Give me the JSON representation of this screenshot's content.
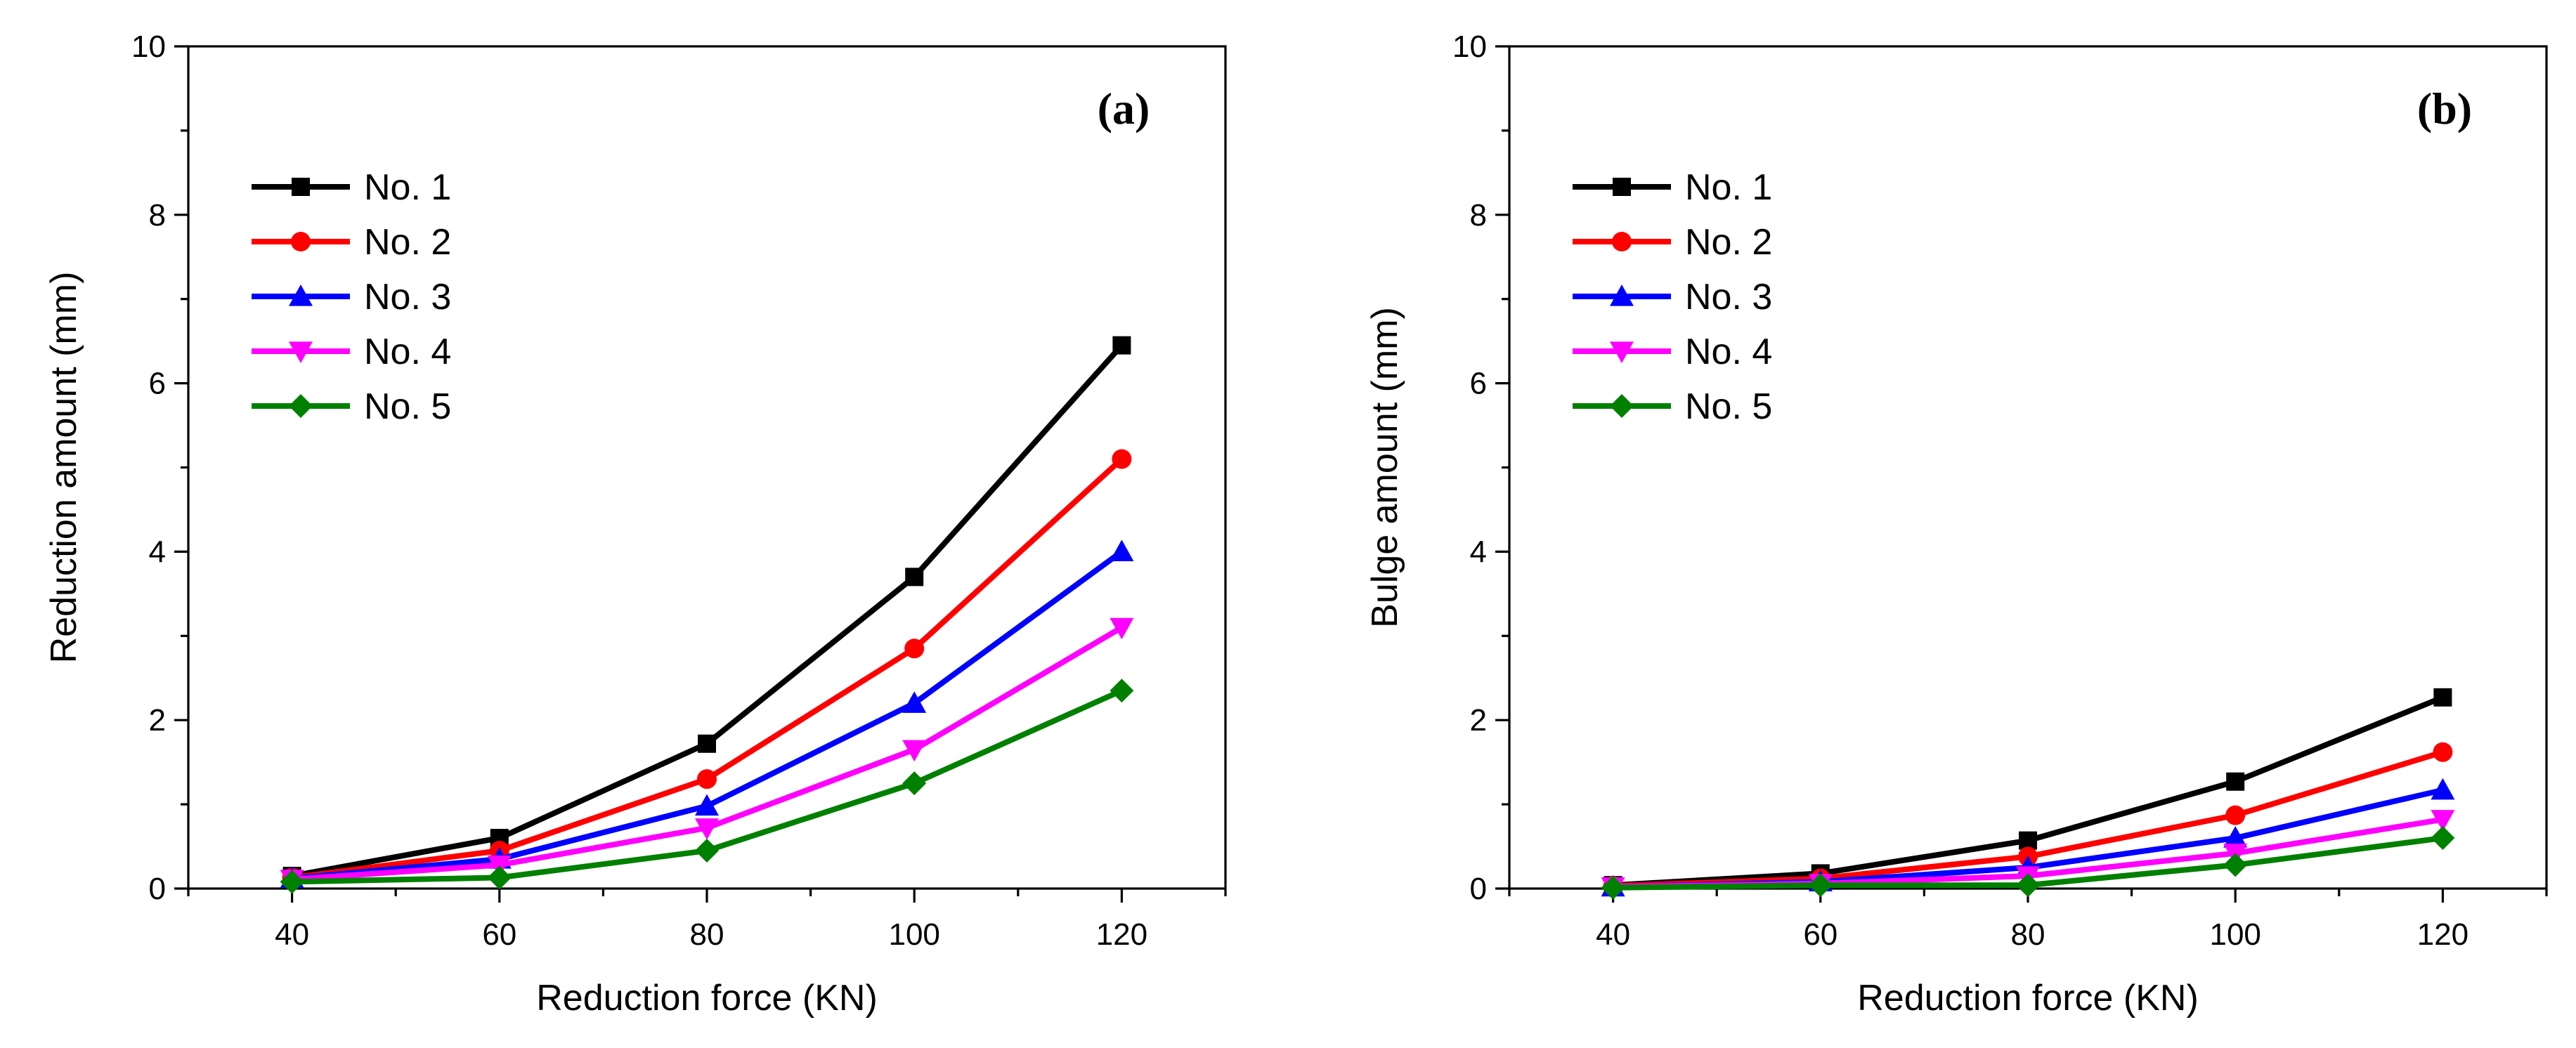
{
  "chart_data": [
    {
      "type": "line",
      "panel_label": "(a)",
      "xlabel": "Reduction force (KN)",
      "ylabel": "Reduction amount (mm)",
      "xlim": [
        30,
        130
      ],
      "ylim": [
        0,
        10
      ],
      "x_ticks": [
        40,
        60,
        80,
        100,
        120
      ],
      "y_ticks": [
        0,
        2,
        4,
        6,
        8,
        10
      ],
      "legend_position": "top-left",
      "grid": false,
      "x": [
        40,
        60,
        80,
        100,
        120
      ],
      "series": [
        {
          "name": "No. 1",
          "color": "#000000",
          "marker": "square",
          "values": [
            0.15,
            0.6,
            1.72,
            3.7,
            6.45
          ]
        },
        {
          "name": "No. 2",
          "color": "#ff0000",
          "marker": "circle",
          "values": [
            0.13,
            0.45,
            1.3,
            2.85,
            5.1
          ]
        },
        {
          "name": "No. 3",
          "color": "#0000ff",
          "marker": "triangle-up",
          "values": [
            0.12,
            0.35,
            0.98,
            2.2,
            4.0
          ]
        },
        {
          "name": "No. 4",
          "color": "#ff00ff",
          "marker": "triangle-down",
          "values": [
            0.11,
            0.28,
            0.72,
            1.65,
            3.1
          ]
        },
        {
          "name": "No. 5",
          "color": "#008000",
          "marker": "diamond",
          "values": [
            0.08,
            0.13,
            0.45,
            1.25,
            2.35
          ]
        }
      ]
    },
    {
      "type": "line",
      "panel_label": "(b)",
      "xlabel": "Reduction force (KN)",
      "ylabel": "Bulge amount (mm)",
      "xlim": [
        30,
        130
      ],
      "ylim": [
        0,
        10
      ],
      "x_ticks": [
        40,
        60,
        80,
        100,
        120
      ],
      "y_ticks": [
        0,
        2,
        4,
        6,
        8,
        10
      ],
      "legend_position": "top-left",
      "grid": false,
      "x": [
        40,
        60,
        80,
        100,
        120
      ],
      "series": [
        {
          "name": "No. 1",
          "color": "#000000",
          "marker": "square",
          "values": [
            0.04,
            0.18,
            0.57,
            1.27,
            2.27
          ]
        },
        {
          "name": "No. 2",
          "color": "#ff0000",
          "marker": "circle",
          "values": [
            0.03,
            0.12,
            0.38,
            0.87,
            1.62
          ]
        },
        {
          "name": "No. 3",
          "color": "#0000ff",
          "marker": "triangle-up",
          "values": [
            0.02,
            0.08,
            0.25,
            0.6,
            1.17
          ]
        },
        {
          "name": "No. 4",
          "color": "#ff00ff",
          "marker": "triangle-down",
          "values": [
            0.02,
            0.06,
            0.15,
            0.42,
            0.82
          ]
        },
        {
          "name": "No. 5",
          "color": "#008000",
          "marker": "diamond",
          "values": [
            0.01,
            0.04,
            0.04,
            0.28,
            0.6
          ]
        }
      ]
    }
  ]
}
